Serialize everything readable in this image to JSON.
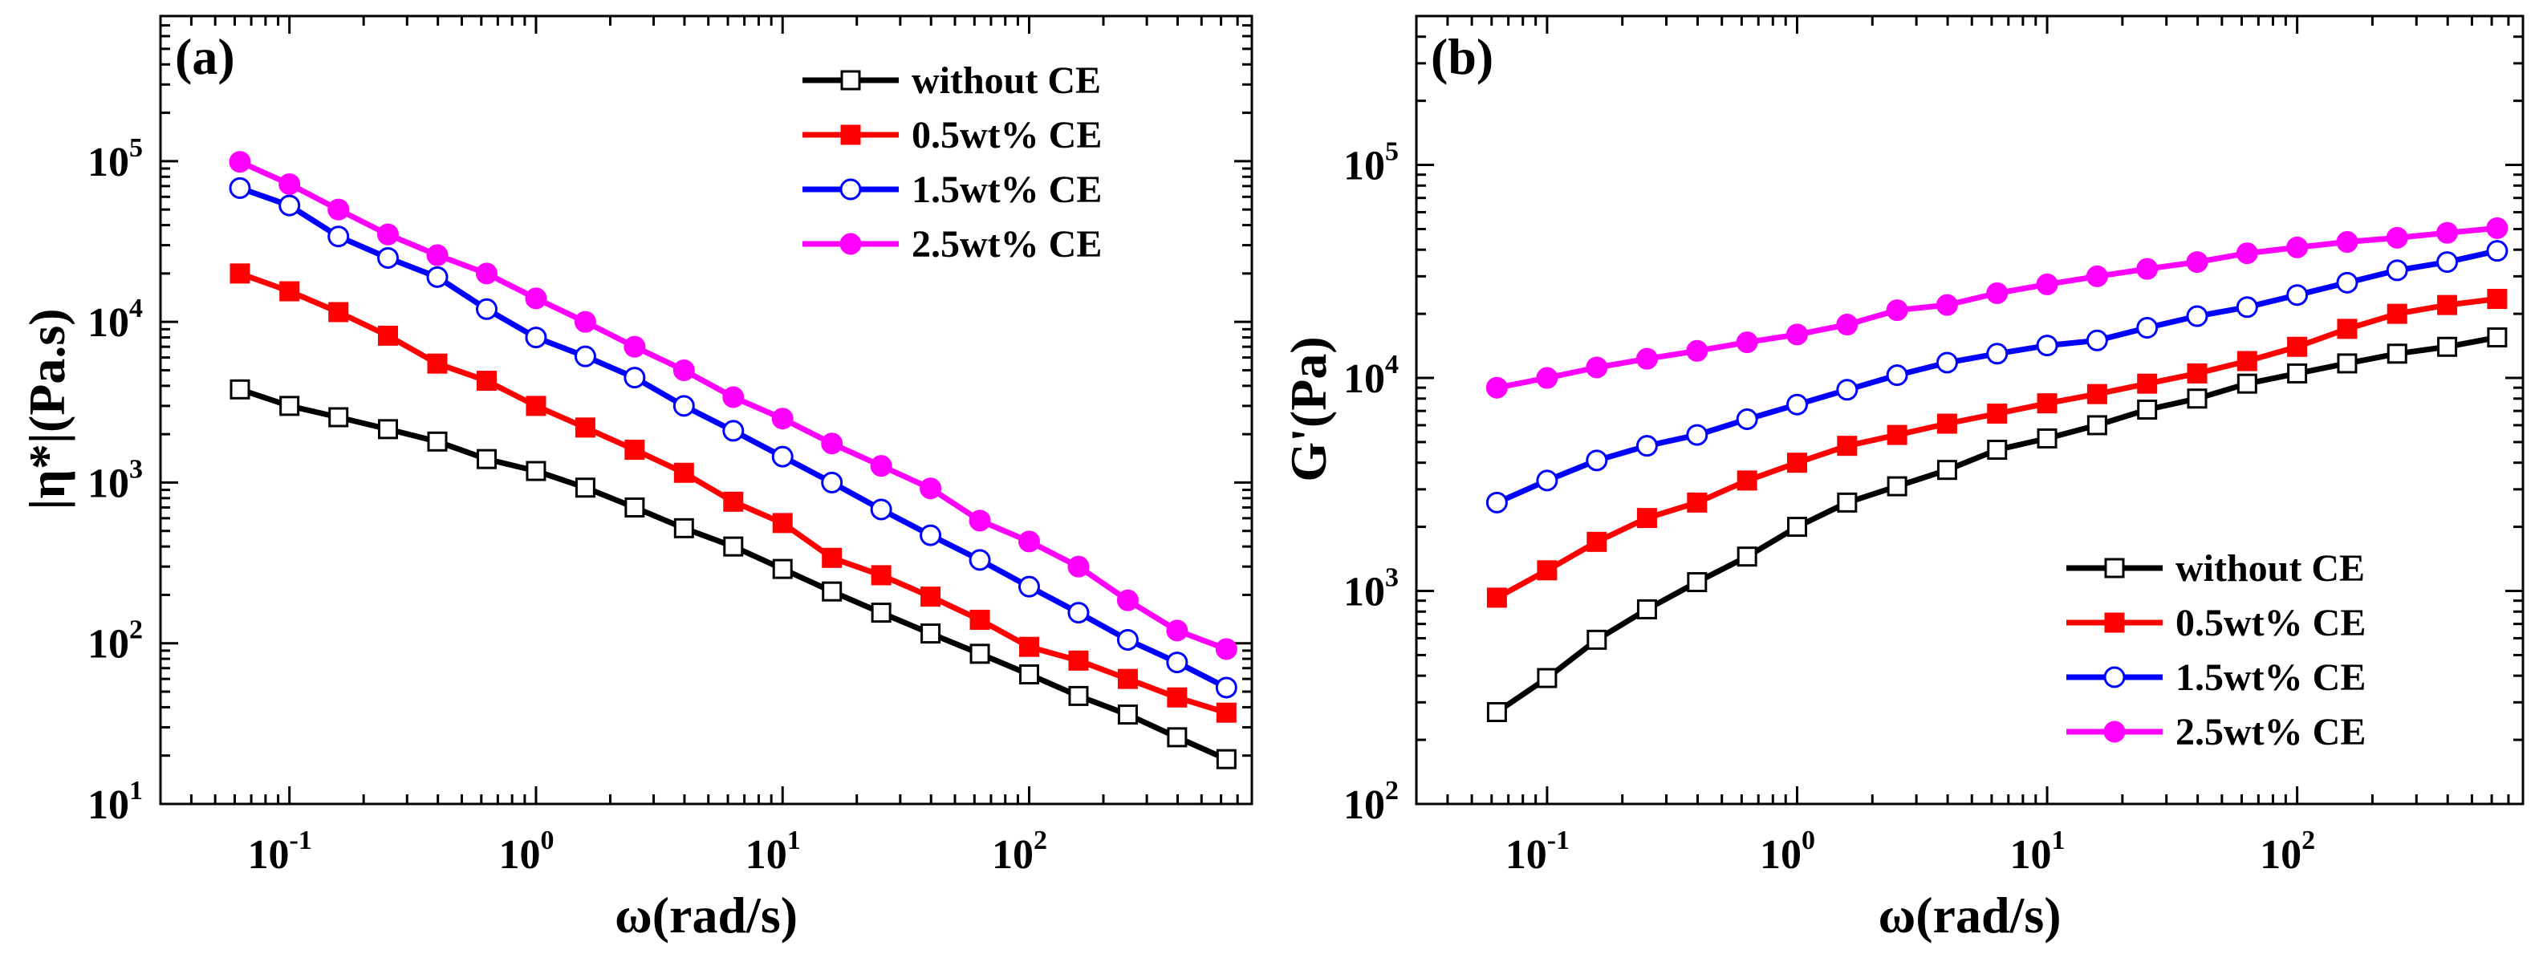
{
  "chart_data": [
    {
      "type": "line",
      "panel_label": "(a)",
      "xlabel": "ω(rad/s)",
      "ylabel": "|η*|(Pa.s)",
      "xscale": "log",
      "yscale": "log",
      "xlim": [
        0.03,
        800
      ],
      "ylim": [
        10,
        800000
      ],
      "x_ticks": [
        {
          "base": "10",
          "exp": "-1",
          "value": 0.1
        },
        {
          "base": "10",
          "exp": "0",
          "value": 1
        },
        {
          "base": "10",
          "exp": "1",
          "value": 10
        },
        {
          "base": "10",
          "exp": "2",
          "value": 100
        }
      ],
      "y_ticks": [
        {
          "base": "10",
          "exp": "1",
          "value": 10
        },
        {
          "base": "10",
          "exp": "2",
          "value": 100
        },
        {
          "base": "10",
          "exp": "3",
          "value": 1000
        },
        {
          "base": "10",
          "exp": "4",
          "value": 10000
        },
        {
          "base": "10",
          "exp": "5",
          "value": 100000
        }
      ],
      "legend_position": "top-right",
      "x": [
        0.063,
        0.1,
        0.158,
        0.251,
        0.398,
        0.631,
        1.0,
        1.585,
        2.512,
        3.981,
        6.31,
        10.0,
        15.85,
        25.12,
        39.81,
        63.1,
        100,
        158.5,
        251.2,
        398.1,
        631
      ],
      "series": [
        {
          "name": "without CE",
          "color": "#000000",
          "marker": "open-square",
          "values": [
            3800,
            3000,
            2550,
            2150,
            1800,
            1400,
            1180,
            930,
            700,
            520,
            400,
            290,
            210,
            155,
            115,
            86,
            64,
            47,
            36,
            26,
            19
          ]
        },
        {
          "name": "0.5wt% CE",
          "color": "#ff0000",
          "marker": "filled-square",
          "values": [
            20000,
            15500,
            11500,
            8200,
            5500,
            4300,
            3000,
            2200,
            1600,
            1150,
            760,
            560,
            340,
            265,
            195,
            140,
            95,
            78,
            60,
            46,
            37
          ]
        },
        {
          "name": "1.5wt% CE",
          "color": "#0000ff",
          "marker": "open-circle",
          "values": [
            68000,
            53000,
            34000,
            25000,
            19000,
            12000,
            8000,
            6100,
            4500,
            3000,
            2100,
            1450,
            1000,
            680,
            470,
            330,
            225,
            155,
            105,
            76,
            53
          ]
        },
        {
          "name": "2.5wt% CE",
          "color": "#ff00ff",
          "marker": "filled-circle",
          "values": [
            99000,
            72000,
            50000,
            35000,
            26000,
            20000,
            14000,
            10000,
            7000,
            5000,
            3400,
            2500,
            1750,
            1270,
            920,
            580,
            430,
            300,
            185,
            120,
            92
          ]
        }
      ]
    },
    {
      "type": "line",
      "panel_label": "(b)",
      "xlabel": "ω(rad/s)",
      "ylabel": "G'(Pa)",
      "xscale": "log",
      "yscale": "log",
      "xlim": [
        0.03,
        800
      ],
      "ylim": [
        100,
        500000
      ],
      "x_ticks": [
        {
          "base": "10",
          "exp": "-1",
          "value": 0.1
        },
        {
          "base": "10",
          "exp": "0",
          "value": 1
        },
        {
          "base": "10",
          "exp": "1",
          "value": 10
        },
        {
          "base": "10",
          "exp": "2",
          "value": 100
        }
      ],
      "y_ticks": [
        {
          "base": "10",
          "exp": "2",
          "value": 100
        },
        {
          "base": "10",
          "exp": "3",
          "value": 1000
        },
        {
          "base": "10",
          "exp": "4",
          "value": 10000
        },
        {
          "base": "10",
          "exp": "5",
          "value": 100000
        }
      ],
      "legend_position": "bottom-right",
      "x": [
        0.063,
        0.1,
        0.158,
        0.251,
        0.398,
        0.631,
        1.0,
        1.585,
        2.512,
        3.981,
        6.31,
        10.0,
        15.85,
        25.12,
        39.81,
        63.1,
        100,
        158.5,
        251.2,
        398.1,
        631
      ],
      "series": [
        {
          "name": "without CE",
          "color": "#000000",
          "marker": "open-square",
          "values": [
            270,
            390,
            590,
            820,
            1100,
            1450,
            2000,
            2600,
            3100,
            3700,
            4600,
            5200,
            6000,
            7100,
            8000,
            9400,
            10500,
            11700,
            13000,
            14000,
            15500
          ]
        },
        {
          "name": "0.5wt% CE",
          "color": "#ff0000",
          "marker": "filled-square",
          "values": [
            930,
            1250,
            1700,
            2200,
            2600,
            3300,
            4000,
            4800,
            5400,
            6100,
            6800,
            7600,
            8400,
            9400,
            10500,
            12000,
            14000,
            17000,
            20000,
            22000,
            23500
          ]
        },
        {
          "name": "1.5wt% CE",
          "color": "#0000ff",
          "marker": "open-circle",
          "values": [
            2600,
            3300,
            4100,
            4800,
            5400,
            6400,
            7500,
            8800,
            10300,
            11800,
            13000,
            14200,
            15000,
            17200,
            19500,
            21500,
            24500,
            28000,
            32000,
            35000,
            39500
          ]
        },
        {
          "name": "2.5wt% CE",
          "color": "#ff00ff",
          "marker": "filled-circle",
          "values": [
            9000,
            10000,
            11200,
            12300,
            13400,
            14700,
            16000,
            17800,
            20800,
            22000,
            25000,
            27500,
            30000,
            32500,
            35000,
            38500,
            41000,
            43500,
            45500,
            48000,
            50500
          ]
        }
      ]
    }
  ]
}
